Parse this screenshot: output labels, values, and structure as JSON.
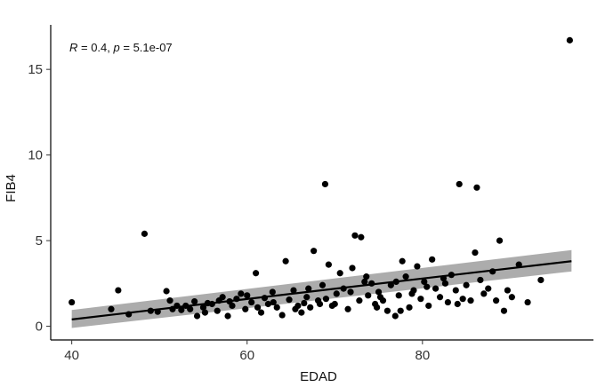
{
  "chart_data": {
    "type": "scatter",
    "title": "",
    "xlabel": "EDAD",
    "ylabel": "FIB4",
    "xlim": [
      37.6,
      99.5
    ],
    "ylim": [
      -0.8,
      17.6
    ],
    "x_ticks": [
      40,
      60,
      80
    ],
    "y_ticks": [
      0,
      5,
      10,
      15
    ],
    "grid": false,
    "legend": "none",
    "annotation": {
      "r_symbol": "R",
      "r_text": " = 0.4, ",
      "p_symbol": "p",
      "p_text": " = 5.1e-07"
    },
    "regression": {
      "x": [
        40,
        97
      ],
      "y": [
        0.4,
        3.8
      ],
      "ci_lower": [
        -0.1,
        3.2
      ],
      "ci_upper": [
        0.95,
        4.45
      ]
    },
    "points": [
      {
        "x": 40,
        "y": 1.4
      },
      {
        "x": 44.5,
        "y": 1.0
      },
      {
        "x": 45.3,
        "y": 2.1
      },
      {
        "x": 46.5,
        "y": 0.7
      },
      {
        "x": 48.3,
        "y": 5.4
      },
      {
        "x": 49.0,
        "y": 0.9
      },
      {
        "x": 49.8,
        "y": 0.85
      },
      {
        "x": 50.8,
        "y": 2.05
      },
      {
        "x": 51.2,
        "y": 1.5
      },
      {
        "x": 51.5,
        "y": 1.0
      },
      {
        "x": 52.5,
        "y": 0.95
      },
      {
        "x": 53.0,
        "y": 1.2
      },
      {
        "x": 54.0,
        "y": 1.45
      },
      {
        "x": 54.3,
        "y": 0.6
      },
      {
        "x": 55.0,
        "y": 1.1
      },
      {
        "x": 55.5,
        "y": 1.35
      },
      {
        "x": 56.0,
        "y": 1.3
      },
      {
        "x": 56.6,
        "y": 0.9
      },
      {
        "x": 57.2,
        "y": 1.7
      },
      {
        "x": 57.8,
        "y": 0.6
      },
      {
        "x": 58.3,
        "y": 1.2
      },
      {
        "x": 58.8,
        "y": 1.6
      },
      {
        "x": 59.3,
        "y": 1.9
      },
      {
        "x": 59.8,
        "y": 1.0
      },
      {
        "x": 60.5,
        "y": 1.4
      },
      {
        "x": 61.0,
        "y": 3.1
      },
      {
        "x": 61.6,
        "y": 0.8
      },
      {
        "x": 62.0,
        "y": 1.65
      },
      {
        "x": 62.4,
        "y": 1.3
      },
      {
        "x": 62.9,
        "y": 2.0
      },
      {
        "x": 63.4,
        "y": 1.1
      },
      {
        "x": 64.0,
        "y": 0.65
      },
      {
        "x": 64.4,
        "y": 3.8
      },
      {
        "x": 64.8,
        "y": 1.55
      },
      {
        "x": 65.3,
        "y": 2.1
      },
      {
        "x": 65.8,
        "y": 1.2
      },
      {
        "x": 66.2,
        "y": 0.8
      },
      {
        "x": 66.8,
        "y": 1.7
      },
      {
        "x": 67.2,
        "y": 1.1
      },
      {
        "x": 67.6,
        "y": 4.4
      },
      {
        "x": 68.1,
        "y": 1.5
      },
      {
        "x": 68.6,
        "y": 2.4
      },
      {
        "x": 68.9,
        "y": 8.3
      },
      {
        "x": 69.3,
        "y": 3.6
      },
      {
        "x": 69.7,
        "y": 1.2
      },
      {
        "x": 70.2,
        "y": 1.9
      },
      {
        "x": 70.6,
        "y": 3.1
      },
      {
        "x": 71.0,
        "y": 2.2
      },
      {
        "x": 71.5,
        "y": 1.0
      },
      {
        "x": 72.0,
        "y": 3.4
      },
      {
        "x": 72.3,
        "y": 5.3
      },
      {
        "x": 72.8,
        "y": 1.5
      },
      {
        "x": 73.0,
        "y": 5.2
      },
      {
        "x": 73.4,
        "y": 2.6
      },
      {
        "x": 73.8,
        "y": 1.8
      },
      {
        "x": 74.2,
        "y": 2.5
      },
      {
        "x": 74.6,
        "y": 1.3
      },
      {
        "x": 75.0,
        "y": 2.0
      },
      {
        "x": 75.5,
        "y": 1.5
      },
      {
        "x": 76.0,
        "y": 0.9
      },
      {
        "x": 76.4,
        "y": 2.4
      },
      {
        "x": 76.9,
        "y": 0.6
      },
      {
        "x": 77.3,
        "y": 1.8
      },
      {
        "x": 77.7,
        "y": 3.8
      },
      {
        "x": 78.1,
        "y": 2.9
      },
      {
        "x": 78.5,
        "y": 1.1
      },
      {
        "x": 79.0,
        "y": 2.1
      },
      {
        "x": 79.4,
        "y": 3.5
      },
      {
        "x": 79.8,
        "y": 1.6
      },
      {
        "x": 80.2,
        "y": 2.6
      },
      {
        "x": 80.7,
        "y": 1.2
      },
      {
        "x": 81.1,
        "y": 3.9
      },
      {
        "x": 81.5,
        "y": 2.2
      },
      {
        "x": 82.0,
        "y": 1.7
      },
      {
        "x": 82.4,
        "y": 2.8
      },
      {
        "x": 82.9,
        "y": 1.4
      },
      {
        "x": 83.3,
        "y": 3.0
      },
      {
        "x": 83.8,
        "y": 2.1
      },
      {
        "x": 84.2,
        "y": 8.3
      },
      {
        "x": 84.6,
        "y": 1.6
      },
      {
        "x": 85.0,
        "y": 2.4
      },
      {
        "x": 85.5,
        "y": 1.5
      },
      {
        "x": 86.0,
        "y": 4.3
      },
      {
        "x": 86.2,
        "y": 8.1
      },
      {
        "x": 86.6,
        "y": 2.7
      },
      {
        "x": 87.0,
        "y": 1.9
      },
      {
        "x": 87.5,
        "y": 2.2
      },
      {
        "x": 88.0,
        "y": 3.2
      },
      {
        "x": 88.4,
        "y": 1.5
      },
      {
        "x": 88.8,
        "y": 5.0
      },
      {
        "x": 89.3,
        "y": 0.9
      },
      {
        "x": 89.7,
        "y": 2.1
      },
      {
        "x": 90.2,
        "y": 1.7
      },
      {
        "x": 91.0,
        "y": 3.6
      },
      {
        "x": 92.0,
        "y": 1.4
      },
      {
        "x": 93.5,
        "y": 2.7
      },
      {
        "x": 96.8,
        "y": 16.7
      },
      {
        "x": 52.0,
        "y": 1.2
      },
      {
        "x": 55.2,
        "y": 0.8
      },
      {
        "x": 58.0,
        "y": 1.45
      },
      {
        "x": 60.0,
        "y": 1.8
      },
      {
        "x": 63.0,
        "y": 1.4
      },
      {
        "x": 65.5,
        "y": 1.0
      },
      {
        "x": 67.0,
        "y": 2.2
      },
      {
        "x": 69.0,
        "y": 1.6
      },
      {
        "x": 70.0,
        "y": 1.3
      },
      {
        "x": 71.8,
        "y": 2.0
      },
      {
        "x": 73.6,
        "y": 2.9
      },
      {
        "x": 75.2,
        "y": 1.7
      },
      {
        "x": 77.0,
        "y": 2.6
      },
      {
        "x": 78.8,
        "y": 1.9
      },
      {
        "x": 80.5,
        "y": 2.3
      },
      {
        "x": 82.6,
        "y": 2.5
      },
      {
        "x": 84.0,
        "y": 1.3
      },
      {
        "x": 77.5,
        "y": 0.9
      },
      {
        "x": 74.8,
        "y": 1.1
      },
      {
        "x": 61.2,
        "y": 1.1
      },
      {
        "x": 66.5,
        "y": 1.35
      },
      {
        "x": 56.8,
        "y": 1.5
      },
      {
        "x": 53.5,
        "y": 1.0
      },
      {
        "x": 68.3,
        "y": 1.3
      }
    ]
  }
}
